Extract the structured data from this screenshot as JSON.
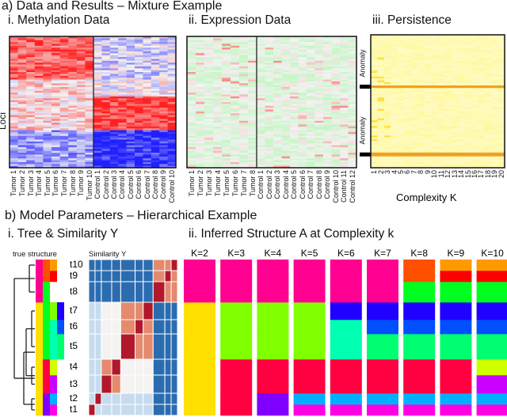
{
  "section_a": {
    "title": "a) Data and Results – Mixture Example",
    "methylation_title": "i. Methylation Data",
    "expression_title": "ii. Expression Data",
    "persistence_title": "iii. Persistence",
    "loci_label": "Loci",
    "anomaly_label": "Anomaly",
    "complexity_label": "Complexity K"
  },
  "section_b": {
    "title": "b) Model Parameters – Hierarchical Example",
    "tree_title": "i. Tree & Similarity Y",
    "structure_title": "ii. Inferred Structure A at Complexity k",
    "true_structure_label": "true structure",
    "similarity_label": "Similarity Y"
  },
  "chart_data": [
    {
      "type": "heatmap",
      "name": "methylation",
      "columns_tumor": [
        "Tumor 1",
        "Tumor 2",
        "Tumor 3",
        "Tumor 4",
        "Tumor 5",
        "Tumor 6",
        "Tumor 7",
        "Tumor 8",
        "Tumor 9",
        "Tumor 10"
      ],
      "columns_control": [
        "Control 1",
        "Control 2",
        "Control 3",
        "Control 4",
        "Control 5",
        "Control 6",
        "Control 7",
        "Control 8",
        "Control 9",
        "Control 10"
      ],
      "colors": {
        "low": "#2020ff",
        "mid": "#f4f4f4",
        "high": "#ff2020"
      },
      "blocks": [
        {
          "to": 0.33,
          "tumor": 0.85,
          "control": 0.42
        },
        {
          "to": 0.45,
          "tumor": 0.58,
          "control": 0.5
        },
        {
          "to": 0.72,
          "tumor": 0.6,
          "control": 0.92
        },
        {
          "to": 1,
          "tumor": 0.3,
          "control": 0.05
        }
      ]
    },
    {
      "type": "heatmap",
      "name": "expression",
      "columns_tumor": [
        "Tumor 1",
        "Tumor 2",
        "Tumor 3",
        "Tumor 4",
        "Tumor 5",
        "Tumor 6",
        "Tumor 7",
        "Tumor 8"
      ],
      "columns_control": [
        "Control 1",
        "Control 2",
        "Control 3",
        "Control 4",
        "Control 5",
        "Control 6",
        "Control 7",
        "Control 8",
        "Control 9",
        "Control 10",
        "Control 11",
        "Control 12"
      ],
      "colors": {
        "low": "#70ff70",
        "mid": "#f2f2f2",
        "high": "#ff7070"
      }
    },
    {
      "type": "heatmap",
      "name": "persistence",
      "x_ticks": [
        "1",
        "2",
        "3",
        "4",
        "5",
        "6",
        "7",
        "8",
        "9",
        "10",
        "11",
        "12",
        "13",
        "14",
        "15",
        "16",
        "17",
        "18",
        "19",
        "20"
      ],
      "xlabel": "Complexity K",
      "anomalies": [
        0.39,
        0.9
      ],
      "colors": {
        "base": "#fff8a0",
        "anomaly": "#f0a020"
      }
    },
    {
      "type": "heatmap",
      "name": "similarity",
      "labels": [
        "t1",
        "t2",
        "t3",
        "t4",
        "t5",
        "t6",
        "t7",
        "t8",
        "t9",
        "t10"
      ],
      "sizes": [
        14,
        14,
        23,
        20,
        32,
        18,
        22,
        26,
        14,
        14
      ],
      "level_colors": [
        "#2b6cb0",
        "#c6dcee",
        "#f5f3f1",
        "#e58a6e",
        "#b2182b"
      ],
      "matrix": [
        [
          4,
          1,
          1,
          1,
          1,
          1,
          1,
          0,
          0,
          0
        ],
        [
          1,
          4,
          1,
          1,
          1,
          1,
          1,
          0,
          0,
          0
        ],
        [
          1,
          1,
          4,
          3,
          2,
          2,
          2,
          0,
          0,
          0
        ],
        [
          1,
          1,
          3,
          4,
          2,
          2,
          2,
          0,
          0,
          0
        ],
        [
          1,
          1,
          2,
          2,
          4,
          3,
          3,
          0,
          0,
          0
        ],
        [
          1,
          1,
          2,
          2,
          3,
          4,
          3,
          0,
          0,
          0
        ],
        [
          1,
          1,
          2,
          2,
          3,
          3,
          4,
          0,
          0,
          0
        ],
        [
          0,
          0,
          0,
          0,
          0,
          0,
          0,
          4,
          3,
          3
        ],
        [
          0,
          0,
          0,
          0,
          0,
          0,
          0,
          3,
          4,
          3
        ],
        [
          0,
          0,
          0,
          0,
          0,
          0,
          0,
          3,
          3,
          4
        ]
      ]
    },
    {
      "type": "table",
      "name": "true_structure",
      "rows": [
        "t1",
        "t2",
        "t3",
        "t4",
        "t5",
        "t6",
        "t7",
        "t8",
        "t9",
        "t10"
      ],
      "columns": [
        [
          "#ffe000",
          "#ffe000",
          "#ffe000",
          "#ffe000",
          "#ffe000",
          "#ffe000",
          "#ffe000",
          "#ff0090",
          "#ff0090",
          "#ff0090"
        ],
        [
          "#8000ff",
          "#8000ff",
          "#ff0040",
          "#ff0040",
          "#00ff20",
          "#00ff20",
          "#00ff20",
          "#00ff20",
          "#ff5000",
          "#ff5000"
        ],
        [
          "#ff00e0",
          "#00b0ff",
          "#cc00ff",
          "#d0ff00",
          "#00ffb0",
          "#00ffb0",
          "#80ff00",
          null,
          "#ff0000",
          "#ff9900"
        ],
        [
          null,
          null,
          null,
          null,
          "#00ff70",
          "#0050ff",
          "#2000ff",
          null,
          null,
          null
        ]
      ]
    },
    {
      "type": "table",
      "name": "inferred_structure",
      "rows": [
        "t1",
        "t2",
        "t3",
        "t4",
        "t5",
        "t6",
        "t7",
        "t8",
        "t9",
        "t10"
      ],
      "panels": [
        {
          "label": "K=2",
          "colors": [
            "#ffe000",
            "#ffe000",
            "#ffe000",
            "#ffe000",
            "#ffe000",
            "#ffe000",
            "#ffe000",
            "#ff0090",
            "#ff0090",
            "#ff0090"
          ]
        },
        {
          "label": "K=3",
          "colors": [
            "#ff0040",
            "#ff0040",
            "#ff0040",
            "#ff0040",
            "#80ff00",
            "#80ff00",
            "#80ff00",
            "#ff0090",
            "#ff0090",
            "#ff0090"
          ]
        },
        {
          "label": "K=4",
          "colors": [
            "#8000ff",
            "#8000ff",
            "#ff0040",
            "#ff0040",
            "#80ff00",
            "#80ff00",
            "#80ff00",
            "#ff0090",
            "#ff0090",
            "#ff0090"
          ]
        },
        {
          "label": "K=5",
          "colors": [
            "#ff00e0",
            "#00b0ff",
            "#ff0040",
            "#ff0040",
            "#80ff00",
            "#80ff00",
            "#80ff00",
            "#ff0090",
            "#ff0090",
            "#ff0090"
          ]
        },
        {
          "label": "K=6",
          "colors": [
            "#ff00e0",
            "#00b0ff",
            "#ff0040",
            "#ff0040",
            "#00ffb0",
            "#00ffb0",
            "#2000ff",
            "#ff0090",
            "#ff0090",
            "#ff0090"
          ]
        },
        {
          "label": "K=7",
          "colors": [
            "#ff00e0",
            "#00b0ff",
            "#ff0040",
            "#ff0040",
            "#00ff70",
            "#0050ff",
            "#2000ff",
            "#ff0090",
            "#ff0090",
            "#ff0090"
          ]
        },
        {
          "label": "K=8",
          "colors": [
            "#ff00e0",
            "#00b0ff",
            "#ff0040",
            "#ff0040",
            "#00ff70",
            "#0050ff",
            "#2000ff",
            "#00ff20",
            "#ff5000",
            "#ff5000"
          ]
        },
        {
          "label": "K=9",
          "colors": [
            "#ff00e0",
            "#00b0ff",
            "#ff0040",
            "#ff0040",
            "#00ff70",
            "#0050ff",
            "#2000ff",
            "#00ff20",
            "#ff0000",
            "#ff9900"
          ]
        },
        {
          "label": "K=10",
          "colors": [
            "#ff00e0",
            "#00b0ff",
            "#cc00ff",
            "#d0ff00",
            "#00ff70",
            "#0050ff",
            "#2000ff",
            "#00ff20",
            "#ff0000",
            "#ff9900"
          ]
        }
      ]
    }
  ]
}
